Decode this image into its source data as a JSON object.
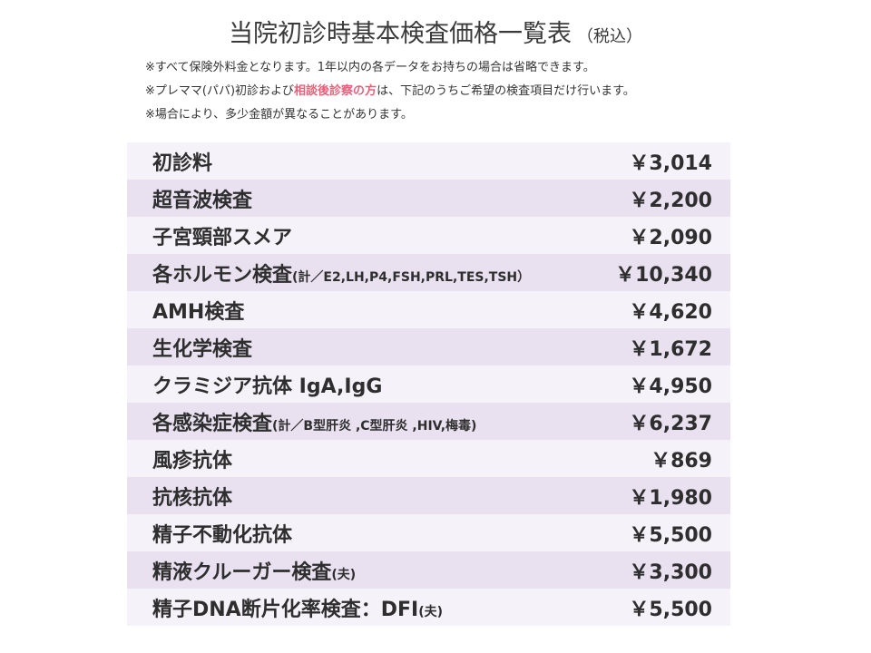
{
  "header": {
    "title": "当院初診時基本検査価格一覧表",
    "title_suffix": "（税込）"
  },
  "notes": [
    {
      "pre": "※すべて保険外料金となります。1年以内の各データをお持ちの場合は省略できます。",
      "highlight": "",
      "post": ""
    },
    {
      "pre": "※プレママ(パパ)初診および",
      "highlight": "相談後診察の方",
      "post": "は、下記のうちご希望の検査項目だけ行います。"
    },
    {
      "pre": "※場合により、多少金額が異なることがあります。",
      "highlight": "",
      "post": ""
    }
  ],
  "items": [
    {
      "name": "初診料",
      "detail": "",
      "price": "￥3,014"
    },
    {
      "name": "超音波検査",
      "detail": "",
      "price": "￥2,200"
    },
    {
      "name": "子宮頸部スメア",
      "detail": "",
      "price": "￥2,090"
    },
    {
      "name": "各ホルモン検査",
      "detail": "(計／E2,LH,P4,FSH,PRL,TES,TSH）",
      "price": "￥10,340"
    },
    {
      "name": "AMH検査",
      "detail": "",
      "price": "￥4,620"
    },
    {
      "name": "生化学検査",
      "detail": "",
      "price": "￥1,672"
    },
    {
      "name": "クラミジア抗体 IgA,IgG",
      "detail": "",
      "price": "￥4,950"
    },
    {
      "name": "各感染症検査",
      "detail": "(計／B型肝炎 ,C型肝炎 ,HIV,梅毒)",
      "price": "￥6,237"
    },
    {
      "name": "風疹抗体",
      "detail": "",
      "price": "￥869"
    },
    {
      "name": "抗核抗体",
      "detail": "",
      "price": "￥1,980"
    },
    {
      "name": "精子不動化抗体",
      "detail": "",
      "price": "￥5,500"
    },
    {
      "name": "精液クルーガー検査",
      "detail": "(夫)",
      "price": "￥3,300"
    },
    {
      "name": "精子DNA断片化率検査：DFI",
      "detail": "(夫)",
      "price": "￥5,500"
    }
  ]
}
